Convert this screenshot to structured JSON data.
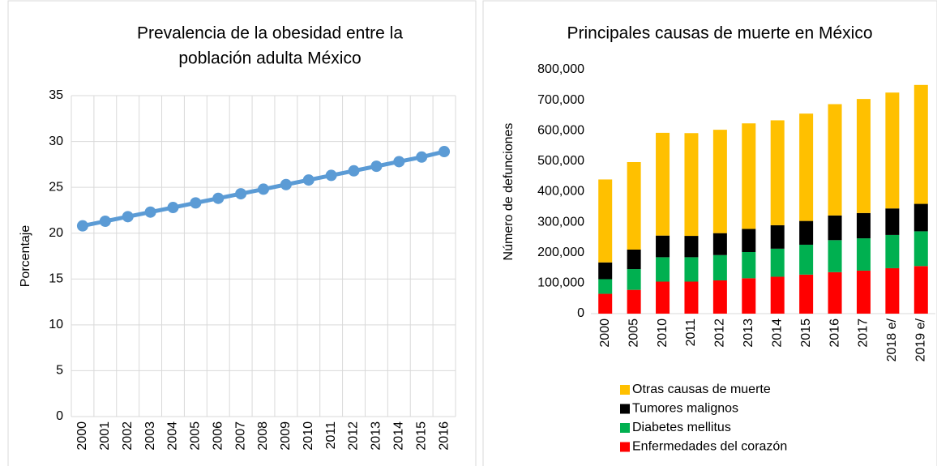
{
  "chart_data": [
    {
      "type": "line",
      "title": [
        "Prevalencia de la obesidad entre la",
        "población adulta México"
      ],
      "y_label": "Porcentaje",
      "categories": [
        "2000",
        "2001",
        "2002",
        "2003",
        "2004",
        "2005",
        "2006",
        "2007",
        "2008",
        "2009",
        "2010",
        "2011",
        "2012",
        "2013",
        "2014",
        "2015",
        "2016"
      ],
      "series": [
        {
          "name": "Porcentaje",
          "color": "#5b9bd5",
          "values": [
            20.8,
            21.3,
            21.8,
            22.3,
            22.8,
            23.3,
            23.8,
            24.3,
            24.8,
            25.3,
            25.8,
            26.3,
            26.8,
            27.3,
            27.8,
            28.3,
            28.9
          ]
        }
      ],
      "ylim": [
        0,
        35
      ],
      "yticks": [
        0,
        5,
        10,
        15,
        20,
        25,
        30,
        35
      ],
      "grid": true
    },
    {
      "type": "bar",
      "stacked": true,
      "title": [
        "Principales causas de muerte en México"
      ],
      "y_label": "Número de defunciones",
      "categories": [
        "2000",
        "2005",
        "2010",
        "2011",
        "2012",
        "2013",
        "2014",
        "2015",
        "2016",
        "2017",
        "2018 e/",
        "2019 e/"
      ],
      "series": [
        {
          "name": "Enfermedades del corazón",
          "color": "#ff0000",
          "values": [
            65000,
            78000,
            105000,
            105000,
            109000,
            116000,
            121000,
            128000,
            136000,
            141000,
            149000,
            156000
          ]
        },
        {
          "name": "Diabetes mellitus",
          "color": "#00b050",
          "values": [
            48000,
            68000,
            80000,
            80000,
            83000,
            86000,
            92000,
            98000,
            105000,
            106000,
            109000,
            114000
          ]
        },
        {
          "name": "Tumores malignos",
          "color": "#000000",
          "values": [
            55000,
            64000,
            71000,
            70000,
            72000,
            76000,
            77000,
            78000,
            81000,
            83000,
            87000,
            90000
          ]
        },
        {
          "name": "Otras causas de muerte",
          "color": "#ffc000",
          "values": [
            272000,
            287000,
            337000,
            337000,
            339000,
            346000,
            344000,
            352000,
            365000,
            374000,
            380000,
            390000
          ]
        }
      ],
      "ylim": [
        0,
        800000
      ],
      "yticks": [
        0,
        {
          "value": 100000,
          "label": "100,000"
        },
        {
          "value": 200000,
          "label": "200,000"
        },
        {
          "value": 300000,
          "label": "300,000"
        },
        {
          "value": 400000,
          "label": "400,000"
        },
        {
          "value": 500000,
          "label": "500,000"
        },
        {
          "value": 600000,
          "label": "600,000"
        },
        {
          "value": 700000,
          "label": "700,000"
        },
        {
          "value": 800000,
          "label": "800,000"
        }
      ],
      "grid": false,
      "legend": "bottom"
    }
  ]
}
